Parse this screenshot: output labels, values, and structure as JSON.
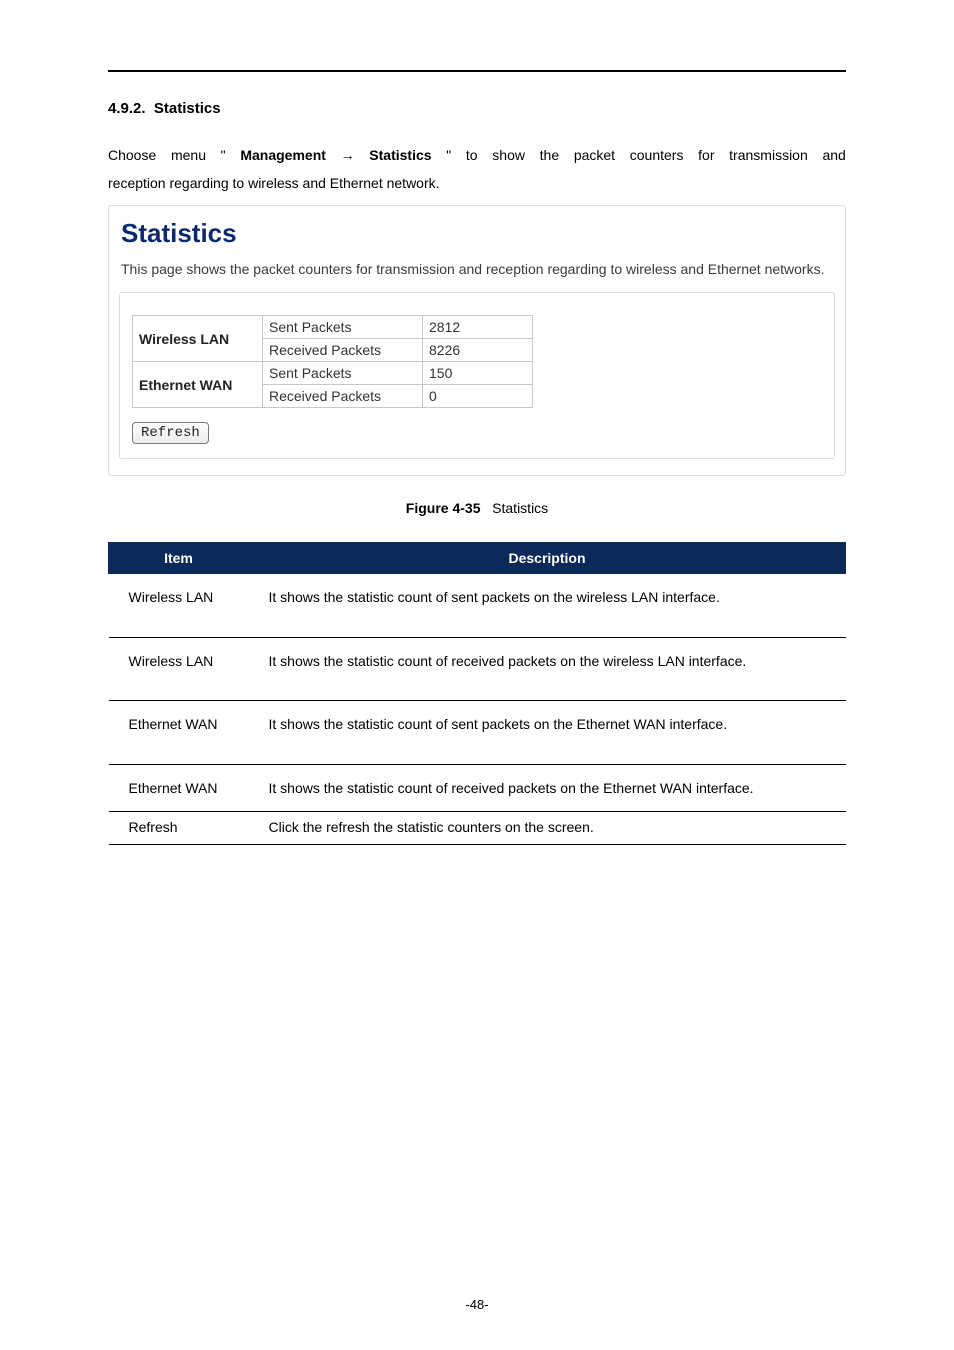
{
  "section": {
    "number": "4.9.2.",
    "title": "Statistics"
  },
  "intro": {
    "line1_parts": [
      "Choose",
      "menu",
      "\"",
      "Management",
      "→",
      "Statistics",
      "\"",
      "to",
      "show",
      "the",
      "packet",
      "counters",
      "for",
      "transmission",
      "and"
    ],
    "bold_idx": {
      "3": true,
      "5": true
    },
    "line2": "reception regarding to wireless and Ethernet network."
  },
  "panel": {
    "title": "Statistics",
    "description": "This page shows the packet counters for transmission and reception regarding to wireless and Ethernet networks.",
    "interfaces": [
      {
        "name": "Wireless LAN",
        "metrics": [
          {
            "label": "Sent Packets",
            "value": "2812"
          },
          {
            "label": "Received Packets",
            "value": "8226"
          }
        ]
      },
      {
        "name": "Ethernet WAN",
        "metrics": [
          {
            "label": "Sent Packets",
            "value": "150"
          },
          {
            "label": "Received Packets",
            "value": "0"
          }
        ]
      }
    ],
    "refresh_label": "Refresh"
  },
  "figure": {
    "number": "Figure 4-35",
    "caption": "Statistics"
  },
  "table": {
    "headers": {
      "item": "Item",
      "description": "Description"
    },
    "rows": [
      {
        "item": "Wireless LAN",
        "desc": "It shows the statistic count of sent packets on the wireless LAN interface.",
        "class": "tall"
      },
      {
        "item": "Wireless LAN",
        "desc": "It shows the statistic count of received packets on the wireless LAN interface.",
        "class": "tall"
      },
      {
        "item": "Ethernet WAN",
        "desc": "It shows the statistic count of sent packets on the Ethernet WAN interface.",
        "class": "tall"
      },
      {
        "item": "Ethernet WAN",
        "desc": "It shows the statistic count of received packets on the Ethernet WAN interface.",
        "class": ""
      },
      {
        "item": "Refresh",
        "desc": "Click the refresh the statistic counters on the screen.",
        "class": "short"
      }
    ]
  },
  "page_number": "-48-"
}
